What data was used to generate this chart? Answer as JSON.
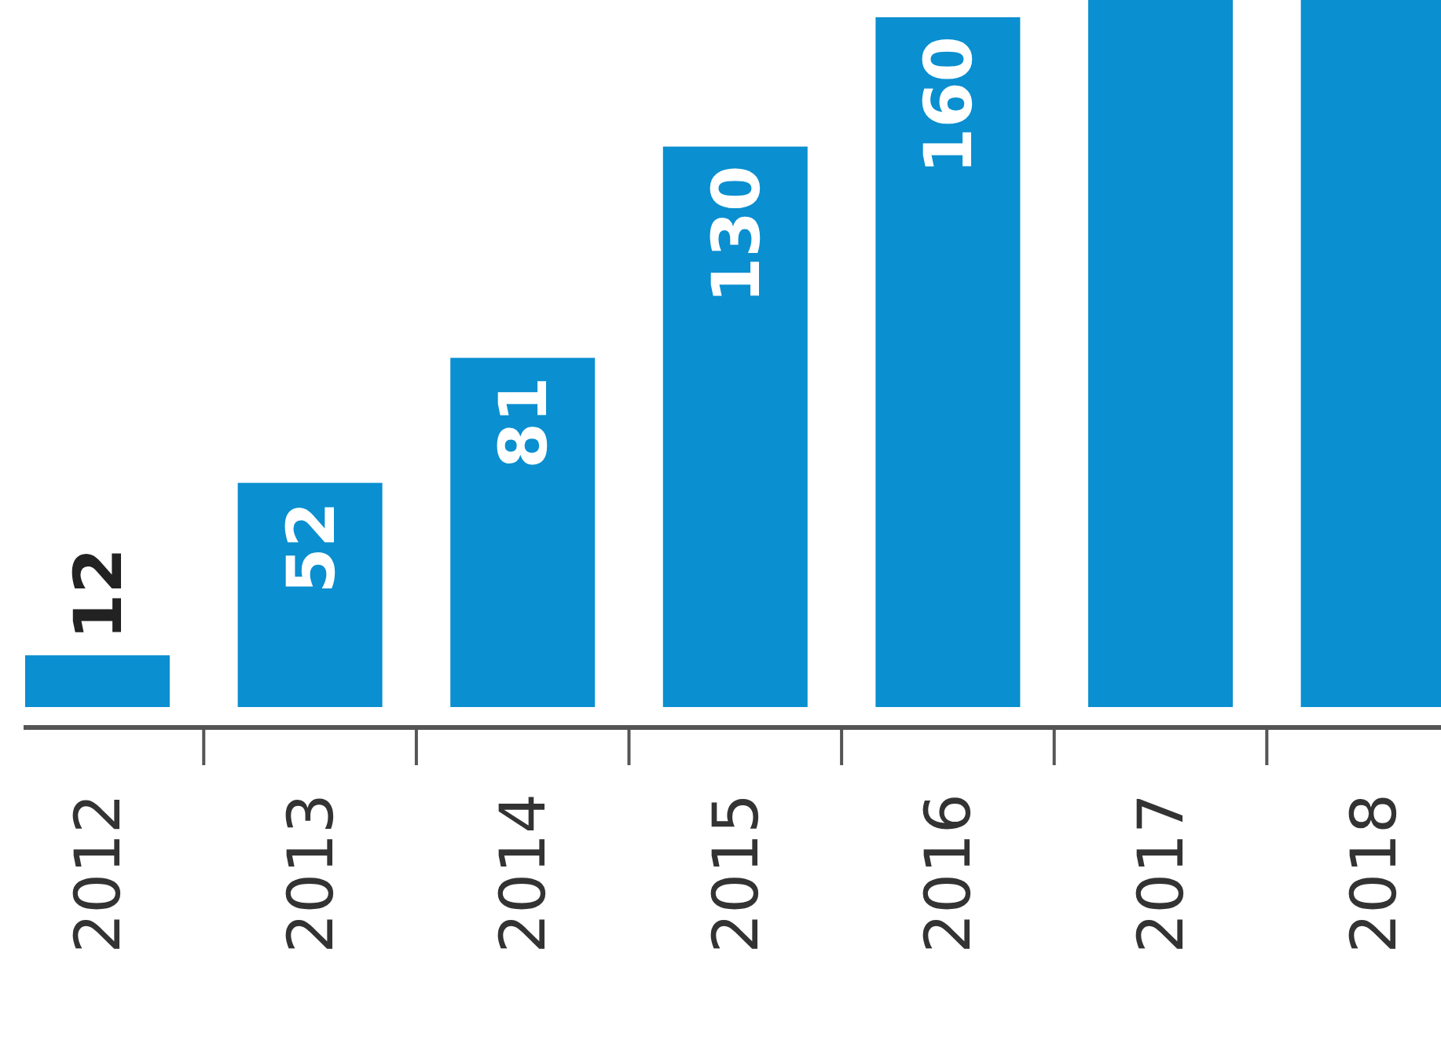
{
  "chart_data": {
    "type": "bar",
    "categories": [
      "2012",
      "2013",
      "2014",
      "2015",
      "2016",
      "2017",
      "2018"
    ],
    "values": [
      12,
      52,
      81,
      130,
      160,
      164,
      164
    ],
    "value_labels": [
      "12",
      "52",
      "81",
      "130",
      "160",
      null,
      null
    ],
    "color": "#0a8fd0",
    "ylim": [
      0,
      164
    ],
    "tick_labels": "x"
  }
}
